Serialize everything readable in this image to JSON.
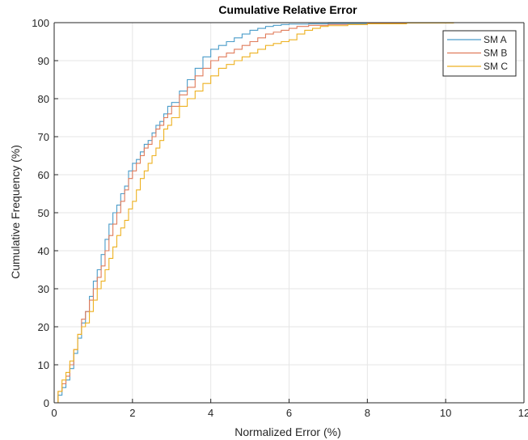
{
  "chart_data": {
    "type": "line",
    "title": "Cumulative Relative Error",
    "xlabel": "Normalized Error (%)",
    "ylabel": "Cumulative Frequency (%)",
    "xlim": [
      0,
      12
    ],
    "ylim": [
      0,
      100
    ],
    "xticks": [
      0,
      2,
      4,
      6,
      8,
      10,
      12
    ],
    "yticks": [
      0,
      10,
      20,
      30,
      40,
      50,
      60,
      70,
      80,
      90,
      100
    ],
    "xtick_labels": [
      "0",
      "2",
      "4",
      "6",
      "8",
      "10",
      "12"
    ],
    "ytick_labels": [
      "0",
      "10",
      "20",
      "30",
      "40",
      "50",
      "60",
      "70",
      "80",
      "90",
      "100"
    ],
    "grid": true,
    "legend_position": "top-right",
    "series": [
      {
        "name": "SM A",
        "color": "#4a9cc9",
        "x": [
          0,
          0.1,
          0.2,
          0.3,
          0.4,
          0.5,
          0.6,
          0.7,
          0.8,
          0.9,
          1.0,
          1.1,
          1.2,
          1.3,
          1.4,
          1.5,
          1.6,
          1.7,
          1.8,
          1.9,
          2.0,
          2.1,
          2.2,
          2.3,
          2.4,
          2.5,
          2.6,
          2.7,
          2.8,
          2.9,
          3.0,
          3.2,
          3.4,
          3.6,
          3.8,
          4.0,
          4.2,
          4.4,
          4.6,
          4.8,
          5.0,
          5.2,
          5.4,
          5.6,
          5.8,
          6.0,
          6.5,
          7.0,
          8.0,
          9.0,
          10.0
        ],
        "y": [
          0,
          2,
          4,
          6,
          9,
          13,
          17,
          21,
          24,
          28,
          32,
          35,
          39,
          43,
          47,
          50,
          52,
          55,
          57,
          61,
          63,
          64,
          66,
          68,
          69,
          71,
          73,
          74,
          76,
          78,
          79,
          82,
          85,
          88,
          91,
          93,
          94,
          95,
          96,
          97,
          98,
          98.5,
          99,
          99.3,
          99.5,
          99.6,
          99.7,
          99.8,
          99.9,
          100,
          100
        ]
      },
      {
        "name": "SM B",
        "color": "#e07b5a",
        "x": [
          0,
          0.1,
          0.2,
          0.3,
          0.4,
          0.5,
          0.6,
          0.7,
          0.8,
          0.9,
          1.0,
          1.1,
          1.2,
          1.3,
          1.4,
          1.5,
          1.6,
          1.7,
          1.8,
          1.9,
          2.0,
          2.1,
          2.2,
          2.3,
          2.4,
          2.5,
          2.6,
          2.7,
          2.8,
          2.9,
          3.0,
          3.2,
          3.4,
          3.6,
          3.8,
          4.0,
          4.2,
          4.4,
          4.6,
          4.8,
          5.0,
          5.2,
          5.4,
          5.6,
          5.8,
          6.0,
          6.2,
          6.5,
          7.0,
          8.0,
          9.0,
          10.1
        ],
        "y": [
          0,
          3,
          5,
          7,
          10,
          14,
          18,
          22,
          24,
          27,
          30,
          33,
          36,
          40,
          44,
          47,
          50,
          53,
          56,
          59,
          61,
          63,
          65,
          67,
          68,
          70,
          72,
          73,
          75,
          76,
          78,
          81,
          83,
          86,
          88,
          90,
          91,
          92,
          93,
          94,
          95,
          96,
          97,
          97.5,
          98,
          98.5,
          99,
          99.3,
          99.5,
          99.8,
          99.9,
          100
        ]
      },
      {
        "name": "SM C",
        "color": "#edb120",
        "x": [
          0,
          0.1,
          0.2,
          0.3,
          0.4,
          0.5,
          0.6,
          0.7,
          0.8,
          0.9,
          1.0,
          1.1,
          1.2,
          1.3,
          1.4,
          1.5,
          1.6,
          1.7,
          1.8,
          1.9,
          2.0,
          2.1,
          2.2,
          2.3,
          2.4,
          2.5,
          2.6,
          2.7,
          2.8,
          2.9,
          3.0,
          3.2,
          3.4,
          3.6,
          3.8,
          4.0,
          4.2,
          4.4,
          4.6,
          4.8,
          5.0,
          5.2,
          5.4,
          5.6,
          5.8,
          6.0,
          6.2,
          6.4,
          6.6,
          6.8,
          7.0,
          7.5,
          8.0,
          9.0,
          10.2
        ],
        "y": [
          0,
          3,
          6,
          8,
          11,
          14,
          18,
          20,
          21,
          24,
          27,
          30,
          32,
          35,
          38,
          41,
          44,
          46,
          48,
          51,
          53,
          56,
          59,
          61,
          63,
          65,
          67,
          69,
          72,
          73,
          75,
          78,
          80,
          82,
          84,
          86,
          88,
          89,
          90,
          91,
          92,
          93,
          94,
          94.5,
          95,
          95.5,
          97,
          98,
          98.5,
          99,
          99.2,
          99.5,
          99.7,
          99.9,
          100
        ]
      }
    ]
  }
}
